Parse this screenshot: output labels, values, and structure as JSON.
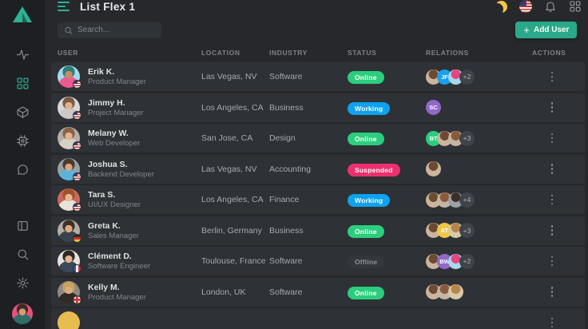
{
  "app": {
    "title": "List Flex 1"
  },
  "search": {
    "placeholder": "Search..."
  },
  "add_user": {
    "plus": "+",
    "label": "Add User"
  },
  "colors": {
    "accent": "#2bb394",
    "add_button": "#2aa98a",
    "moon": "#f7c44a",
    "online": "#2bce7d",
    "working": "#0ea2ef",
    "suspended": "#ee2f6e",
    "offline_bg": "#34373c"
  },
  "sidebar": {
    "icons_top": [
      "activity-icon",
      "grid-icon",
      "cube-icon",
      "chip-icon",
      "chat-icon"
    ],
    "icons_bottom": [
      "panel-icon",
      "search-icon",
      "gear-icon"
    ],
    "active_icon": "grid-icon",
    "user_avatar": {
      "bg": "#e8527a",
      "hair": "#3a2c28",
      "skin": "#d99a72",
      "shirt": "#2f6e68"
    }
  },
  "topbar_icons": [
    "moon-icon",
    "us-flag-icon",
    "bell-icon",
    "apps-icon"
  ],
  "table": {
    "columns": [
      "USER",
      "LOCATION",
      "INDUSTRY",
      "STATUS",
      "RELATIONS",
      "ACTIONS"
    ],
    "status_styles": {
      "Online": {
        "bg": "#2bce7d",
        "fg": "#ffffff"
      },
      "Working": {
        "bg": "#0ea2ef",
        "fg": "#ffffff"
      },
      "Suspended": {
        "bg": "#ee2f6e",
        "fg": "#ffffff"
      },
      "Offline": {
        "bg": "#34373c",
        "fg": "#8f959b"
      }
    },
    "rows": [
      {
        "name": "Erik K.",
        "role": "Product Manager",
        "location": "Las Vegas, NV",
        "industry": "Software",
        "status": "Online",
        "flag": "us",
        "avatar": {
          "bg": "#a6d9ec",
          "hair": "#2e7d78",
          "skin": "#c98c62",
          "shirt": "#ee5a90"
        },
        "relations": [
          {
            "type": "photo",
            "colors": [
              "#cdb49c",
              "#6d4a33"
            ]
          },
          {
            "type": "initials",
            "text": "JF",
            "color": "#19a0f0"
          },
          {
            "type": "photo",
            "colors": [
              "#a8d8ee",
              "#e8447e"
            ]
          }
        ],
        "more": "+2"
      },
      {
        "name": "Jimmy H.",
        "role": "Project Manager",
        "location": "Los Angeles, CA",
        "industry": "Business",
        "status": "Working",
        "flag": "us",
        "avatar": {
          "bg": "#d8d8d6",
          "hair": "#7a5c44",
          "skin": "#e2b28c",
          "shirt": "#c9c9c7"
        },
        "relations": [
          {
            "type": "initials",
            "text": "SC",
            "color": "#9168c9"
          }
        ],
        "more": ""
      },
      {
        "name": "Melany W.",
        "role": "Web Developer",
        "location": "San Jose, CA",
        "industry": "Design",
        "status": "Online",
        "flag": "us",
        "avatar": {
          "bg": "#b5afa8",
          "hair": "#8a6346",
          "skin": "#e3b491",
          "shirt": "#d8cfc4"
        },
        "relations": [
          {
            "type": "initials",
            "text": "BT",
            "color": "#2bce7d"
          },
          {
            "type": "photo",
            "colors": [
              "#cdb49c",
              "#6d4a33"
            ]
          },
          {
            "type": "photo",
            "colors": [
              "#c3b6a4",
              "#8a5a3a"
            ]
          }
        ],
        "more": "+3"
      },
      {
        "name": "Joshua S.",
        "role": "Backend Developer",
        "location": "Las Vegas, NV",
        "industry": "Accounting",
        "status": "Suspended",
        "flag": "us",
        "avatar": {
          "bg": "#9aa0a4",
          "hair": "#4a3b2e",
          "skin": "#d9a77c",
          "shirt": "#5bb3d9"
        },
        "relations": [
          {
            "type": "photo",
            "colors": [
              "#cdb49c",
              "#6d4a33"
            ]
          }
        ],
        "more": ""
      },
      {
        "name": "Tara S.",
        "role": "UI/UX Designer",
        "location": "Los Angeles, CA",
        "industry": "Finance",
        "status": "Working",
        "flag": "us",
        "avatar": {
          "bg": "#c96a5a",
          "hair": "#a0522d",
          "skin": "#e8b890",
          "shirt": "#e8e2da"
        },
        "relations": [
          {
            "type": "photo",
            "colors": [
              "#cdb49c",
              "#6d4a33"
            ]
          },
          {
            "type": "photo",
            "colors": [
              "#c3b6a4",
              "#8a5a3a"
            ]
          },
          {
            "type": "photo",
            "colors": [
              "#9aa0a6",
              "#3a2f28"
            ]
          }
        ],
        "more": "+4"
      },
      {
        "name": "Greta K.",
        "role": "Sales Manager",
        "location": "Berlin, Germany",
        "industry": "Business",
        "status": "Online",
        "flag": "de",
        "avatar": {
          "bg": "#b3ada6",
          "hair": "#3e3228",
          "skin": "#dcab84",
          "shirt": "#39444a"
        },
        "relations": [
          {
            "type": "photo",
            "colors": [
              "#cdb49c",
              "#6d4a33"
            ]
          },
          {
            "type": "initials",
            "text": "AT",
            "color": "#f0c64a"
          },
          {
            "type": "photo",
            "colors": [
              "#d9c9a8",
              "#b5854a"
            ]
          }
        ],
        "more": "+3"
      },
      {
        "name": "Clément D.",
        "role": "Software Engineer",
        "location": "Toulouse, France",
        "industry": "Software",
        "status": "Offline",
        "flag": "fr",
        "avatar": {
          "bg": "#e6e2dd",
          "hair": "#2e2620",
          "skin": "#e3b491",
          "shirt": "#3a4a5a"
        },
        "relations": [
          {
            "type": "photo",
            "colors": [
              "#cdb49c",
              "#6d4a33"
            ]
          },
          {
            "type": "initials",
            "text": "BW",
            "color": "#9168c9"
          },
          {
            "type": "photo",
            "colors": [
              "#a8d8ee",
              "#e8447e"
            ]
          }
        ],
        "more": "+2"
      },
      {
        "name": "Kelly M.",
        "role": "Product Manager",
        "location": "London, UK",
        "industry": "Software",
        "status": "Online",
        "flag": "en",
        "avatar": {
          "bg": "#8e8880",
          "hair": "#c9a35e",
          "skin": "#dcab84",
          "shirt": "#2f2a26"
        },
        "relations": [
          {
            "type": "photo",
            "colors": [
              "#cdb49c",
              "#6d4a33"
            ]
          },
          {
            "type": "photo",
            "colors": [
              "#c3b6a4",
              "#8a5a3a"
            ]
          },
          {
            "type": "photo",
            "colors": [
              "#d9c9a8",
              "#b5854a"
            ]
          }
        ],
        "more": ""
      },
      {
        "name": "",
        "role": "",
        "location": "",
        "industry": "",
        "status": "",
        "flag": "",
        "avatar": {
          "bg": "#e9bc4f",
          "hair": "#e9bc4f",
          "skin": "#e9bc4f",
          "shirt": "#e9bc4f"
        },
        "relations": [],
        "more": "",
        "partial": true
      }
    ]
  }
}
